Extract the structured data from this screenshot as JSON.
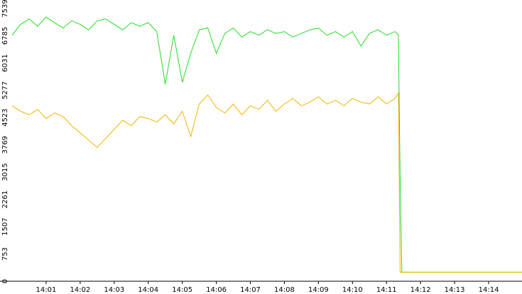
{
  "chart_data": {
    "type": "line",
    "x": [
      0,
      0.25,
      0.5,
      0.75,
      1,
      1.25,
      1.5,
      1.75,
      2,
      2.25,
      2.5,
      2.75,
      3,
      3.25,
      3.5,
      3.75,
      4,
      4.25,
      4.5,
      4.75,
      5,
      5.25,
      5.5,
      5.75,
      6,
      6.25,
      6.5,
      6.75,
      7,
      7.25,
      7.5,
      7.75,
      8,
      8.25,
      8.5,
      8.75,
      9,
      9.25,
      9.5,
      9.75,
      10,
      10.25,
      10.5,
      10.75,
      11,
      11.25,
      11.35,
      11.4,
      11.45,
      14.98
    ],
    "series": [
      {
        "color": "#22dd22",
        "values": [
          6800,
          7100,
          7250,
          7050,
          7300,
          7150,
          7000,
          7200,
          7100,
          6950,
          7200,
          7250,
          7100,
          6950,
          7150,
          7050,
          7150,
          6900,
          5450,
          6800,
          5500,
          6300,
          6950,
          7000,
          6300,
          6850,
          7000,
          6750,
          6900,
          6800,
          6950,
          6850,
          6900,
          6750,
          6850,
          6950,
          7000,
          6800,
          6900,
          6750,
          6900,
          6500,
          6850,
          6950,
          6800,
          6900,
          6800,
          2800,
          250,
          250
        ]
      },
      {
        "color": "#f0b400",
        "values": [
          4850,
          4700,
          4600,
          4750,
          4500,
          4650,
          4550,
          4300,
          4100,
          3900,
          3700,
          3950,
          4200,
          4450,
          4300,
          4550,
          4500,
          4400,
          4600,
          4350,
          4700,
          4000,
          4900,
          5150,
          4800,
          4650,
          4900,
          4600,
          4850,
          4750,
          5000,
          4700,
          4900,
          5050,
          4850,
          4950,
          5100,
          4900,
          5000,
          4850,
          5050,
          4950,
          4900,
          5100,
          4900,
          5050,
          5200,
          250,
          250,
          250
        ]
      }
    ],
    "xlim": [
      0,
      14.98
    ],
    "xticks": [
      {
        "value": 1,
        "label": "14:01"
      },
      {
        "value": 2,
        "label": "14:02"
      },
      {
        "value": 3,
        "label": "14:03"
      },
      {
        "value": 4,
        "label": "14:04"
      },
      {
        "value": 5,
        "label": "14:05"
      },
      {
        "value": 6,
        "label": "14:06"
      },
      {
        "value": 7,
        "label": "14:07"
      },
      {
        "value": 8,
        "label": "14:08"
      },
      {
        "value": 9,
        "label": "14:09"
      },
      {
        "value": 10,
        "label": "14:10"
      },
      {
        "value": 11,
        "label": "14:11"
      },
      {
        "value": 12,
        "label": "14:12"
      },
      {
        "value": 13,
        "label": "14:13"
      },
      {
        "value": 14,
        "label": "14:14"
      }
    ],
    "ylim": [
      0,
      7539
    ],
    "yticks": [
      0,
      753,
      1507,
      2261,
      3015,
      3769,
      4523,
      5277,
      6031,
      6785,
      7539
    ]
  }
}
